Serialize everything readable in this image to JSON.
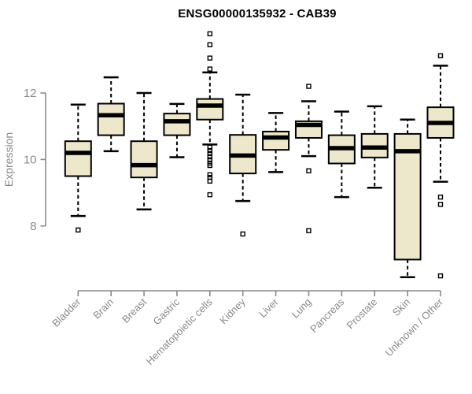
{
  "chart_data": {
    "type": "boxplot",
    "title": "ENSG00000135932 - CAB39",
    "xlabel": "",
    "ylabel": "Expression",
    "y_axis": {
      "ticks": [
        8,
        10,
        12
      ],
      "range_shown": [
        6.0,
        14.2
      ]
    },
    "grid": "off",
    "legend": "none",
    "categories": [
      "Bladder",
      "Brain",
      "Breast",
      "Gastric",
      "Hematopoietic cells",
      "Kidney",
      "Liver",
      "Lung",
      "Pancreas",
      "Prostate",
      "Skin",
      "Unknown / Other"
    ],
    "series": [
      {
        "name": "Bladder",
        "whisker_low": 8.3,
        "q1": 9.5,
        "median": 10.2,
        "q3": 10.55,
        "whisker_high": 11.65,
        "outliers": [
          7.88
        ]
      },
      {
        "name": "Brain",
        "whisker_low": 10.25,
        "q1": 10.73,
        "median": 11.33,
        "q3": 11.68,
        "whisker_high": 12.47,
        "outliers": []
      },
      {
        "name": "Breast",
        "whisker_low": 8.5,
        "q1": 9.46,
        "median": 9.83,
        "q3": 10.55,
        "whisker_high": 12.0,
        "outliers": []
      },
      {
        "name": "Gastric",
        "whisker_low": 10.07,
        "q1": 10.73,
        "median": 11.15,
        "q3": 11.38,
        "whisker_high": 11.67,
        "outliers": []
      },
      {
        "name": "Hematopoietic cells",
        "whisker_low": 10.45,
        "q1": 11.2,
        "median": 11.62,
        "q3": 11.82,
        "whisker_high": 12.62,
        "outliers": [
          13.78,
          13.45,
          13.05,
          12.72,
          10.37,
          10.27,
          10.18,
          10.08,
          9.99,
          9.89,
          9.82,
          9.54,
          9.46,
          9.35,
          8.94
        ]
      },
      {
        "name": "Kidney",
        "whisker_low": 8.75,
        "q1": 9.58,
        "median": 10.12,
        "q3": 10.74,
        "whisker_high": 11.95,
        "outliers": [
          7.76
        ]
      },
      {
        "name": "Liver",
        "whisker_low": 9.62,
        "q1": 10.29,
        "median": 10.66,
        "q3": 10.84,
        "whisker_high": 11.4,
        "outliers": []
      },
      {
        "name": "Lung",
        "whisker_low": 10.1,
        "q1": 10.65,
        "median": 11.04,
        "q3": 11.15,
        "whisker_high": 11.75,
        "outliers": [
          12.2,
          9.66,
          7.86
        ]
      },
      {
        "name": "Pancreas",
        "whisker_low": 8.87,
        "q1": 9.88,
        "median": 10.34,
        "q3": 10.73,
        "whisker_high": 11.44,
        "outliers": []
      },
      {
        "name": "Prostate",
        "whisker_low": 9.15,
        "q1": 10.06,
        "median": 10.36,
        "q3": 10.77,
        "whisker_high": 11.6,
        "outliers": []
      },
      {
        "name": "Skin",
        "whisker_low": 6.46,
        "q1": 6.99,
        "median": 10.25,
        "q3": 10.77,
        "whisker_high": 11.2,
        "outliers": []
      },
      {
        "name": "Unknown / Other",
        "whisker_low": 9.33,
        "q1": 10.65,
        "median": 11.1,
        "q3": 11.57,
        "whisker_high": 12.82,
        "outliers": [
          13.12,
          8.87,
          8.65,
          6.5
        ]
      }
    ],
    "colors": {
      "box_fill": "#EDE7CB",
      "box_stroke": "#000000",
      "median_color": "#000000",
      "axis_color": "#8a8a8a",
      "title_color": "#000000"
    }
  }
}
